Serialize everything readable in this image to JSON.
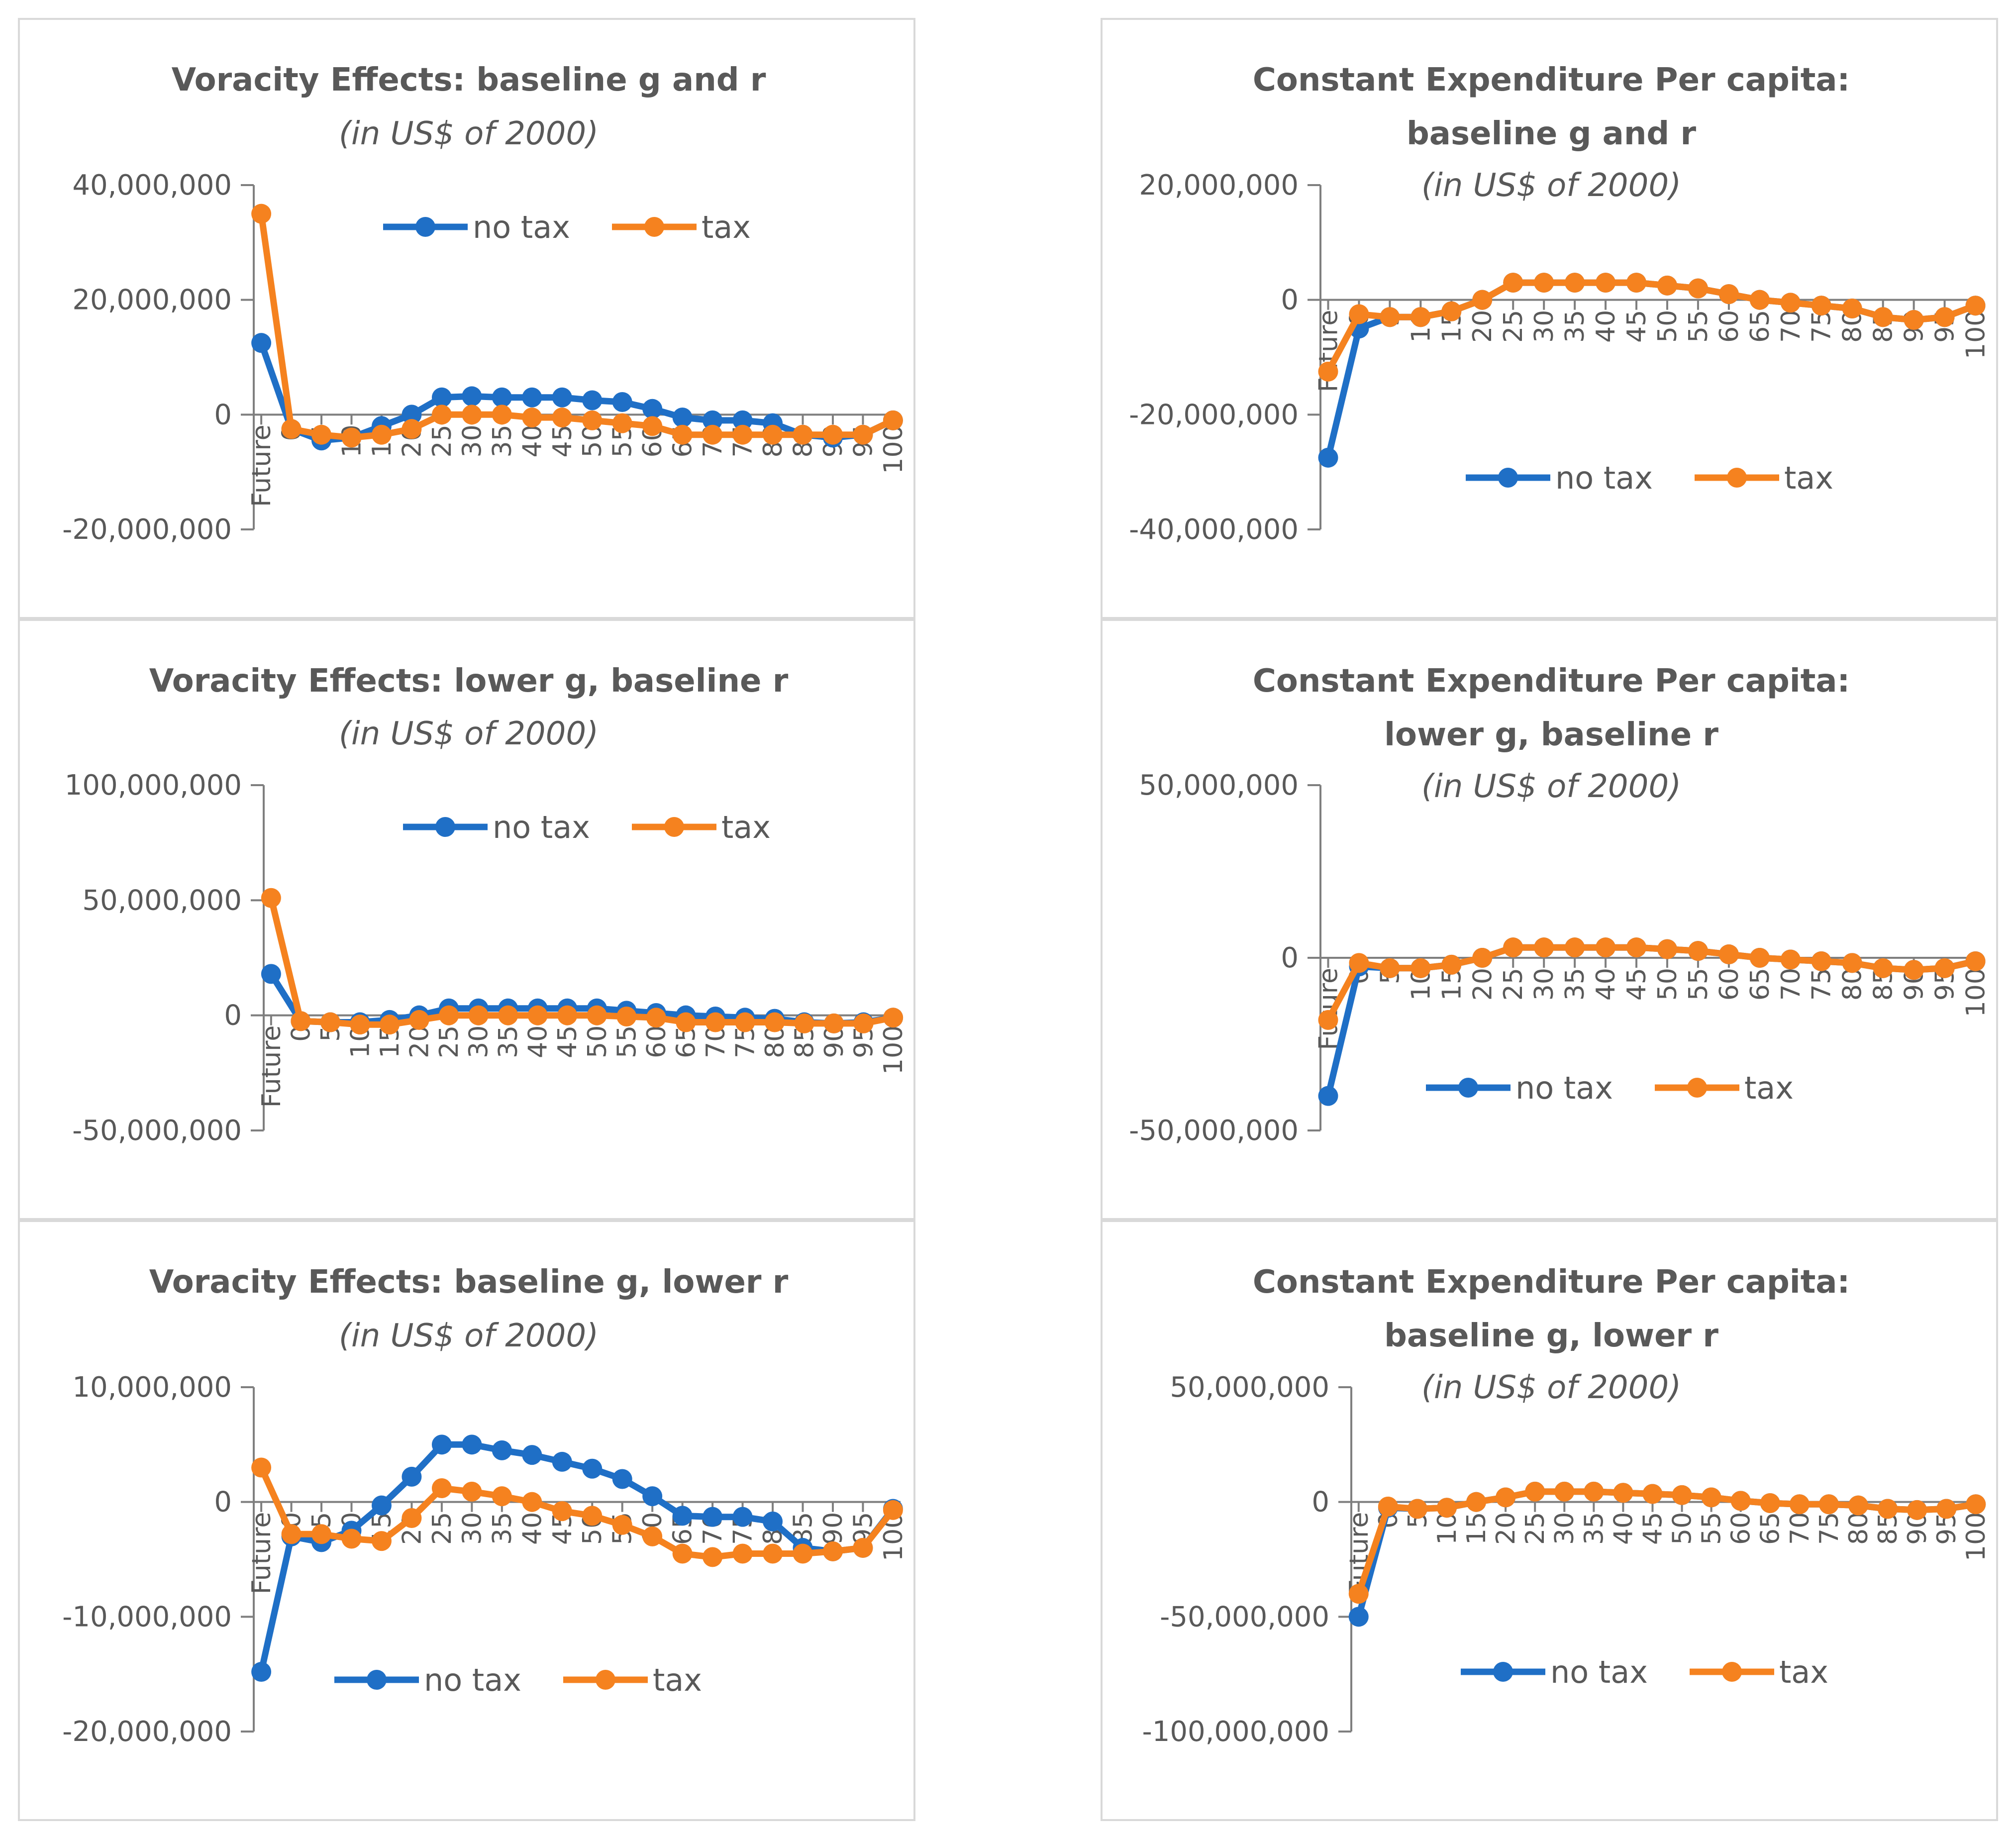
{
  "colors": {
    "no_tax": "#1f6fc6",
    "tax": "#f5821f",
    "axis": "#7f7f7f",
    "text": "#595959",
    "border": "#d9d9d9"
  },
  "legend": {
    "no_tax": "no tax",
    "tax": "tax"
  },
  "chart_data": [
    {
      "type": "line",
      "title_lines": [
        "Voracity Effects: baseline g and r"
      ],
      "subtitle": "(in US$ of 2000)",
      "categories": [
        "Future",
        "0",
        "5",
        "10",
        "15",
        "20",
        "25",
        "30",
        "35",
        "40",
        "45",
        "50",
        "55",
        "60",
        "65",
        "70",
        "75",
        "80",
        "85",
        "90",
        "95",
        "100"
      ],
      "yticks": [
        40000000,
        20000000,
        0,
        -20000000
      ],
      "ytick_labels": [
        "40,000,000",
        "20,000,000",
        "0",
        "-20,000,000"
      ],
      "ylim": [
        -20000000,
        40000000
      ],
      "legend_position": "top",
      "series": [
        {
          "name": "no tax",
          "values": [
            12500000,
            -2500000,
            -4500000,
            -4000000,
            -2000000,
            0,
            3000000,
            3200000,
            3000000,
            3000000,
            3000000,
            2500000,
            2200000,
            1000000,
            -500000,
            -1000000,
            -1000000,
            -1500000,
            -3500000,
            -4000000,
            -3500000,
            -1000000
          ]
        },
        {
          "name": "tax",
          "values": [
            35000000,
            -2500000,
            -3500000,
            -4000000,
            -3500000,
            -2500000,
            0,
            0,
            0,
            -500000,
            -500000,
            -1000000,
            -1500000,
            -2000000,
            -3500000,
            -3500000,
            -3500000,
            -3500000,
            -3500000,
            -3500000,
            -3500000,
            -1000000
          ]
        }
      ]
    },
    {
      "type": "line",
      "title_lines": [
        "Constant Expenditure Per capita:",
        "baseline g and r"
      ],
      "subtitle": "(in US$ of 2000)",
      "categories": [
        "Future",
        "0",
        "5",
        "10",
        "15",
        "20",
        "25",
        "30",
        "35",
        "40",
        "45",
        "50",
        "55",
        "60",
        "65",
        "70",
        "75",
        "80",
        "85",
        "90",
        "95",
        "100"
      ],
      "yticks": [
        20000000,
        0,
        -20000000,
        -40000000
      ],
      "ytick_labels": [
        "20,000,000",
        "0",
        "-20,000,000",
        "-40,000,000"
      ],
      "ylim": [
        -40000000,
        20000000
      ],
      "legend_position": "bottom",
      "series": [
        {
          "name": "no tax",
          "values": [
            -27500000,
            -5000000,
            -3000000,
            -3000000,
            -2000000,
            0,
            3000000,
            3000000,
            3000000,
            3000000,
            3000000,
            2500000,
            2000000,
            1000000,
            0,
            -500000,
            -1000000,
            -1500000,
            -3000000,
            -3500000,
            -3000000,
            -1000000
          ]
        },
        {
          "name": "tax",
          "values": [
            -12500000,
            -2500000,
            -3000000,
            -3000000,
            -2000000,
            0,
            3000000,
            3000000,
            3000000,
            3000000,
            3000000,
            2500000,
            2000000,
            1000000,
            0,
            -500000,
            -1000000,
            -1500000,
            -3000000,
            -3500000,
            -3000000,
            -1000000
          ]
        }
      ]
    },
    {
      "type": "line",
      "title_lines": [
        "Voracity Effects: lower g, baseline r"
      ],
      "subtitle": "(in US$ of 2000)",
      "categories": [
        "Future",
        "0",
        "5",
        "10",
        "15",
        "20",
        "25",
        "30",
        "35",
        "40",
        "45",
        "50",
        "55",
        "60",
        "65",
        "70",
        "75",
        "80",
        "85",
        "90",
        "95",
        "100"
      ],
      "yticks": [
        100000000,
        50000000,
        0,
        -50000000
      ],
      "ytick_labels": [
        "100,000,000",
        "50,000,000",
        "0",
        "-50,000,000"
      ],
      "ylim": [
        -50000000,
        100000000
      ],
      "legend_position": "top",
      "series": [
        {
          "name": "no tax",
          "values": [
            18000000,
            -2500000,
            -3000000,
            -3000000,
            -2000000,
            0,
            3000000,
            3000000,
            3000000,
            3000000,
            3000000,
            3000000,
            2000000,
            1000000,
            0,
            -500000,
            -1000000,
            -1500000,
            -3000000,
            -3500000,
            -3000000,
            -1000000
          ]
        },
        {
          "name": "tax",
          "values": [
            51000000,
            -2500000,
            -3000000,
            -4000000,
            -4000000,
            -2000000,
            0,
            0,
            0,
            0,
            0,
            0,
            -500000,
            -1000000,
            -3000000,
            -3000000,
            -3000000,
            -3000000,
            -3500000,
            -3500000,
            -3500000,
            -1000000
          ]
        }
      ]
    },
    {
      "type": "line",
      "title_lines": [
        "Constant Expenditure Per capita:",
        "lower g, baseline r"
      ],
      "subtitle": "(in US$ of 2000)",
      "categories": [
        "Future",
        "0",
        "5",
        "10",
        "15",
        "20",
        "25",
        "30",
        "35",
        "40",
        "45",
        "50",
        "55",
        "60",
        "65",
        "70",
        "75",
        "80",
        "85",
        "90",
        "95",
        "100"
      ],
      "yticks": [
        50000000,
        0,
        -50000000
      ],
      "ytick_labels": [
        "50,000,000",
        "0",
        "-50,000,000"
      ],
      "ylim": [
        -50000000,
        50000000
      ],
      "legend_position": "bottom",
      "series": [
        {
          "name": "no tax",
          "values": [
            -40000000,
            -2500000,
            -3000000,
            -3000000,
            -2000000,
            0,
            3000000,
            3000000,
            3000000,
            3000000,
            3000000,
            2500000,
            2000000,
            1000000,
            0,
            -500000,
            -1000000,
            -1500000,
            -3000000,
            -3500000,
            -3000000,
            -1000000
          ]
        },
        {
          "name": "tax",
          "values": [
            -18000000,
            -1500000,
            -3000000,
            -3000000,
            -2000000,
            0,
            3000000,
            3000000,
            3000000,
            3000000,
            3000000,
            2500000,
            2000000,
            1000000,
            0,
            -500000,
            -1000000,
            -1500000,
            -3000000,
            -3500000,
            -3000000,
            -1000000
          ]
        }
      ]
    },
    {
      "type": "line",
      "title_lines": [
        "Voracity Effects: baseline g, lower r"
      ],
      "subtitle": "(in US$ of 2000)",
      "categories": [
        "Future",
        "0",
        "5",
        "10",
        "15",
        "20",
        "25",
        "30",
        "35",
        "40",
        "45",
        "50",
        "55",
        "60",
        "65",
        "70",
        "75",
        "80",
        "85",
        "90",
        "95",
        "100"
      ],
      "yticks": [
        10000000,
        0,
        -10000000,
        -20000000
      ],
      "ytick_labels": [
        "10,000,000",
        "0",
        "-10,000,000",
        "-20,000,000"
      ],
      "ylim": [
        -20000000,
        10000000
      ],
      "legend_position": "bottom",
      "series": [
        {
          "name": "no tax",
          "values": [
            -14800000,
            -3000000,
            -3500000,
            -2500000,
            -300000,
            2200000,
            5000000,
            5000000,
            4500000,
            4100000,
            3500000,
            2900000,
            2000000,
            500000,
            -1200000,
            -1300000,
            -1300000,
            -1700000,
            -4000000,
            -4300000,
            -4000000,
            -600000
          ]
        },
        {
          "name": "tax",
          "values": [
            3000000,
            -2800000,
            -2800000,
            -3200000,
            -3400000,
            -1400000,
            1200000,
            900000,
            500000,
            0,
            -800000,
            -1200000,
            -2000000,
            -3000000,
            -4500000,
            -4800000,
            -4500000,
            -4500000,
            -4500000,
            -4300000,
            -4000000,
            -700000
          ]
        }
      ]
    },
    {
      "type": "line",
      "title_lines": [
        "Constant Expenditure Per capita:",
        "baseline g, lower r"
      ],
      "subtitle": "(in US$ of 2000)",
      "categories": [
        "Future",
        "0",
        "5",
        "10",
        "15",
        "20",
        "25",
        "30",
        "35",
        "40",
        "45",
        "50",
        "55",
        "60",
        "65",
        "70",
        "75",
        "80",
        "85",
        "90",
        "95",
        "100"
      ],
      "yticks": [
        50000000,
        0,
        -50000000,
        -100000000
      ],
      "ytick_labels": [
        "50,000,000",
        "0",
        "-50,000,000",
        "-100,000,000"
      ],
      "ylim": [
        -100000000,
        50000000
      ],
      "legend_position": "bottom",
      "series": [
        {
          "name": "no tax",
          "values": [
            -50000000,
            -2500000,
            -3000000,
            -2500000,
            0,
            2000000,
            4500000,
            4500000,
            4500000,
            4000000,
            3500000,
            3000000,
            2000000,
            500000,
            -500000,
            -1000000,
            -1000000,
            -1500000,
            -3000000,
            -3500000,
            -3000000,
            -1000000
          ]
        },
        {
          "name": "tax",
          "values": [
            -40000000,
            -2000000,
            -3000000,
            -2500000,
            0,
            2000000,
            4500000,
            4500000,
            4500000,
            4000000,
            3500000,
            3000000,
            2000000,
            500000,
            -500000,
            -1000000,
            -1000000,
            -1500000,
            -3000000,
            -3500000,
            -3000000,
            -1000000
          ]
        }
      ]
    }
  ]
}
